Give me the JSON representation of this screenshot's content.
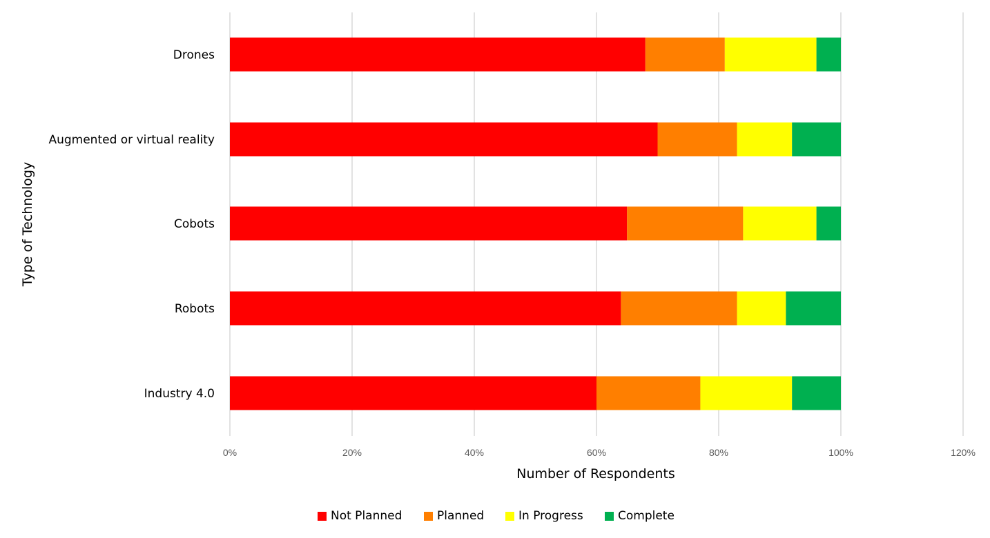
{
  "chart_data": {
    "type": "bar",
    "orientation": "horizontal",
    "stacked": true,
    "title": "",
    "xlabel": "Number of Respondents",
    "ylabel": "Type of Technology",
    "xlim": [
      0,
      120
    ],
    "x_ticks": [
      "0%",
      "20%",
      "40%",
      "60%",
      "80%",
      "100%",
      "120%"
    ],
    "x_tick_values": [
      0,
      20,
      40,
      60,
      80,
      100,
      120
    ],
    "grid": true,
    "legend_position": "bottom",
    "categories": [
      "Drones",
      "Augmented or virtual reality",
      "Cobots",
      "Robots",
      "Industry 4.0"
    ],
    "series": [
      {
        "name": "Not Planned",
        "color": "#ff0000",
        "values": [
          68,
          70,
          65,
          64,
          60
        ]
      },
      {
        "name": "Planned",
        "color": "#ff7f00",
        "values": [
          13,
          13,
          19,
          19,
          17
        ]
      },
      {
        "name": "In Progress",
        "color": "#ffff00",
        "values": [
          15,
          9,
          12,
          8,
          15
        ]
      },
      {
        "name": "Complete",
        "color": "#00b050",
        "values": [
          4,
          8,
          4,
          9,
          8
        ]
      }
    ]
  }
}
